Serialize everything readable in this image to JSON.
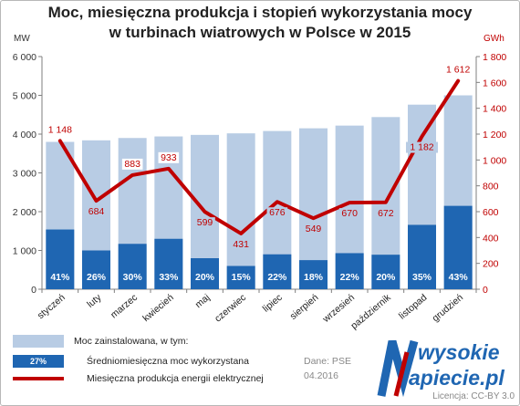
{
  "title_line1": "Moc, miesięczna produkcja i stopień wykorzystania mocy",
  "title_line2": "w turbinach wiatrowych w Polsce w 2015",
  "colors": {
    "installed": "#b8cce4",
    "utilized": "#1f66b2",
    "production": "#c00000"
  },
  "chart_data": {
    "type": "bar",
    "categories": [
      "styczeń",
      "luty",
      "marzec",
      "kwiecień",
      "maj",
      "czerwiec",
      "lipiec",
      "sierpień",
      "wrzesień",
      "październik",
      "listopad",
      "grudzień"
    ],
    "series": [
      {
        "name": "Moc zainstalowana, w tym:",
        "axis": "left",
        "values": [
          3800,
          3840,
          3900,
          3940,
          3980,
          4020,
          4080,
          4150,
          4220,
          4440,
          4760,
          5000
        ]
      },
      {
        "name": "Średniomiesięczna moc wykorzystana",
        "axis": "left",
        "values": [
          1540,
          1000,
          1170,
          1300,
          800,
          600,
          900,
          750,
          930,
          890,
          1660,
          2150
        ],
        "labels": [
          "41%",
          "26%",
          "30%",
          "33%",
          "20%",
          "15%",
          "22%",
          "18%",
          "22%",
          "20%",
          "35%",
          "43%"
        ]
      },
      {
        "name": "Miesięczna produkcja energii elektrycznej",
        "type": "line",
        "axis": "right",
        "values": [
          1148,
          684,
          883,
          933,
          599,
          431,
          676,
          549,
          670,
          672,
          1182,
          1612
        ],
        "labels": [
          "1 148",
          "684",
          "883",
          "933",
          "599",
          "431",
          "676",
          "549",
          "670",
          "672",
          "1 182",
          "1 612"
        ]
      }
    ],
    "ylabel_left": "MW",
    "ylabel_right": "GWh",
    "ylim_left": [
      0,
      6000
    ],
    "ylim_right": [
      0,
      1800
    ],
    "yticks_left": [
      "0",
      "1 000",
      "2 000",
      "3 000",
      "4 000",
      "5 000",
      "6 000"
    ],
    "yticks_right": [
      "0",
      "200",
      "400",
      "600",
      "800",
      "1 000",
      "1 200",
      "1 400",
      "1 600",
      "1 800"
    ],
    "grid": false,
    "legend_position": "bottom-left"
  },
  "legend": {
    "installed_label": "Moc zainstalowana, w tym:",
    "utilized_swatch_text": "27%",
    "utilized_label": "Średniomiesięczna moc wykorzystana",
    "production_label": "Miesięczna produkcja energii elektrycznej"
  },
  "source_line1": "Dane: PSE",
  "source_line2": "04.2016",
  "brand_line1": "wysokie",
  "brand_line2": "apiecie.pl",
  "license": "Licencja: CC-BY 3.0"
}
